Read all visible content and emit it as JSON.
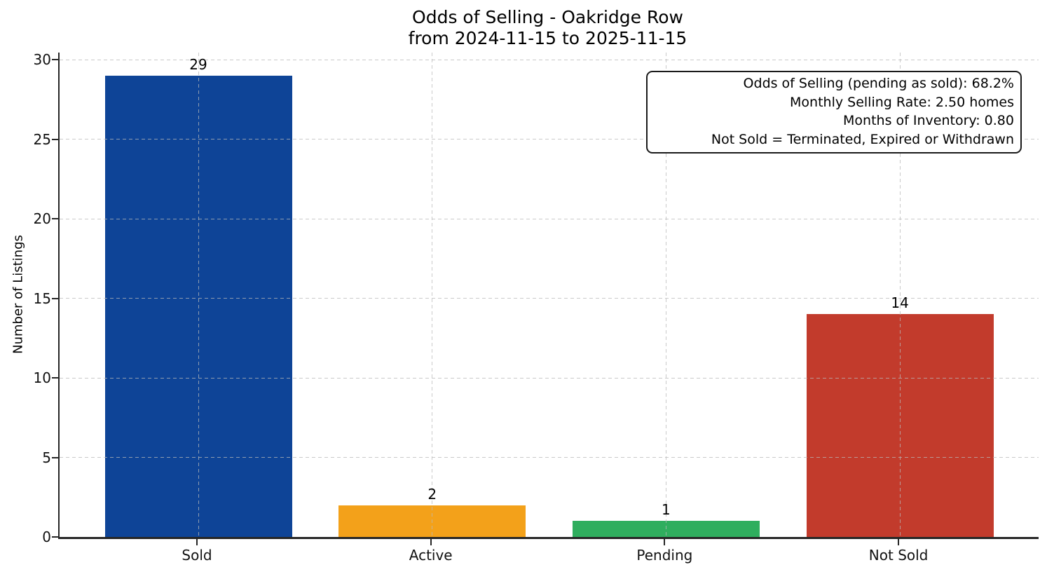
{
  "title": {
    "line1": "Odds of Selling - Oakridge Row",
    "line2": "from 2024-11-15 to 2025-11-15"
  },
  "chart_data": {
    "type": "bar",
    "title": "Odds of Selling - Oakridge Row\nfrom 2024-11-15 to 2025-11-15",
    "categories": [
      "Sold",
      "Active",
      "Pending",
      "Not Sold"
    ],
    "values": [
      29,
      2,
      1,
      14
    ],
    "bar_labels": [
      "29",
      "2",
      "1",
      "14"
    ],
    "colors": [
      "#0e4497",
      "#f3a11a",
      "#2fae5e",
      "#c23b2c"
    ],
    "xlabel": "",
    "ylabel": "Number of Listings",
    "ylim": [
      0,
      30
    ],
    "yticks": [
      0,
      5,
      10,
      15,
      20,
      25,
      30
    ],
    "grid": "dashed, horizontal and vertical",
    "legend": "none",
    "annotation": {
      "position": "top-right",
      "lines": [
        "Odds of Selling (pending as sold): 68.2%",
        "Monthly Selling Rate: 2.50 homes",
        "Months of Inventory: 0.80",
        "Not Sold = Terminated, Expired or Withdrawn"
      ]
    }
  }
}
